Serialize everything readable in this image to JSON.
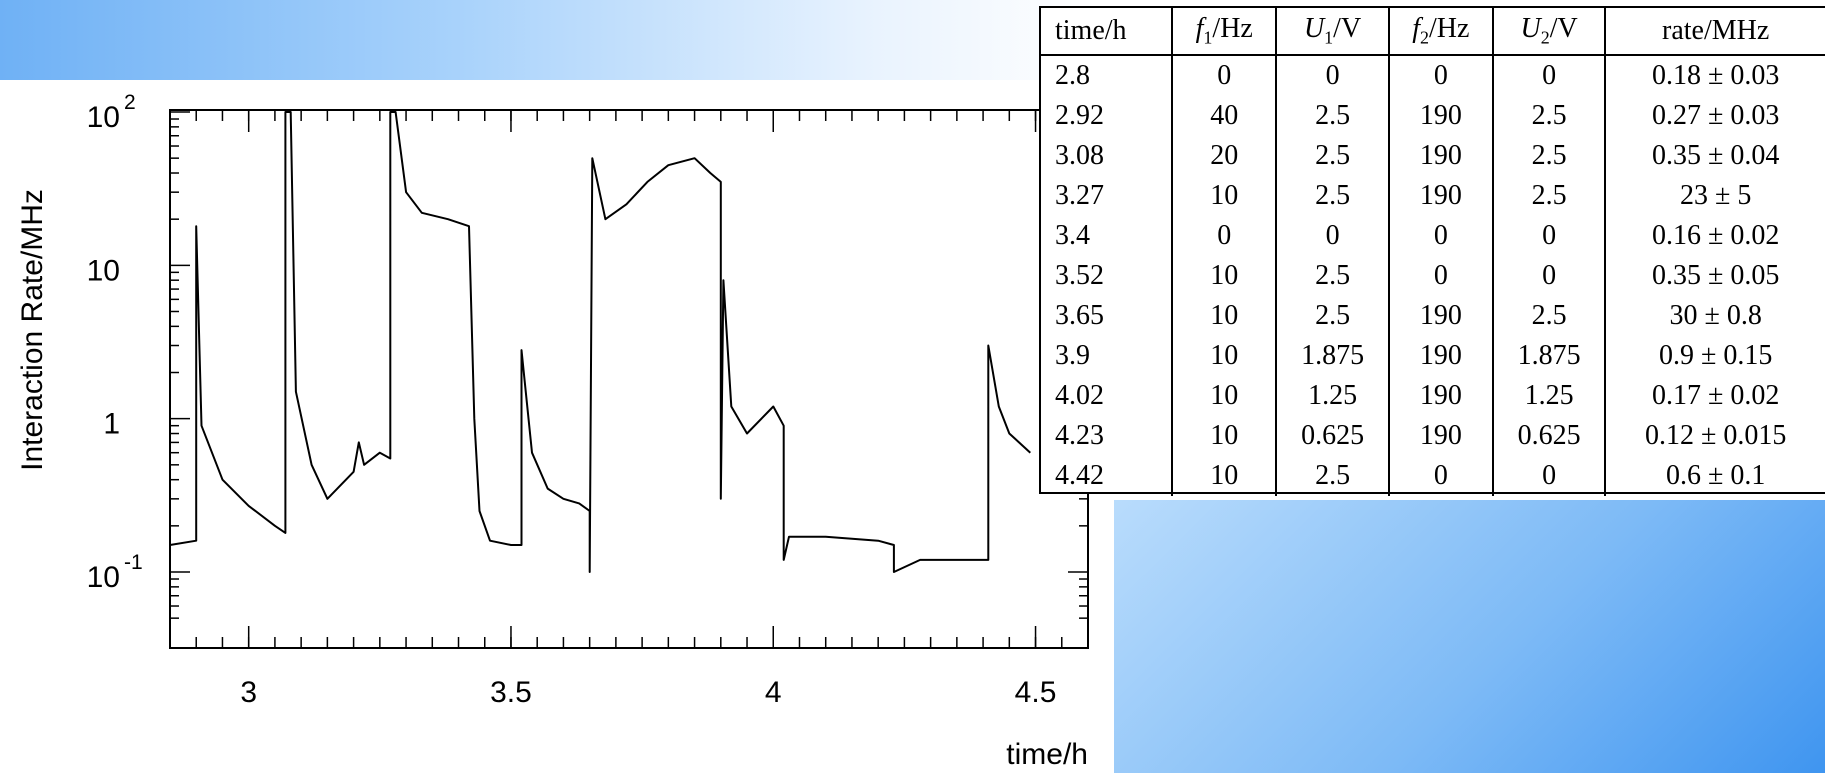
{
  "chart_data": {
    "type": "line",
    "xlabel": "time/h",
    "ylabel": "Interaction Rate/MHz",
    "yscale": "log",
    "xlim": [
      2.85,
      4.6
    ],
    "ylim": [
      0.05,
      100
    ],
    "xticks": [
      {
        "value": 3,
        "label": "3"
      },
      {
        "value": 3.5,
        "label": "3.5"
      },
      {
        "value": 4,
        "label": "4"
      },
      {
        "value": 4.5,
        "label": "4.5"
      }
    ],
    "yticks": [
      {
        "value": 0.1,
        "base": "10",
        "exp": "-1"
      },
      {
        "value": 1,
        "base": "1",
        "exp": ""
      },
      {
        "value": 10,
        "base": "10",
        "exp": ""
      },
      {
        "value": 100,
        "base": "10",
        "exp": "2"
      }
    ],
    "series": [
      {
        "points": [
          [
            2.85,
            0.15
          ],
          [
            2.9,
            0.16
          ],
          [
            2.9,
            18
          ],
          [
            2.91,
            0.9
          ],
          [
            2.95,
            0.4
          ],
          [
            3.0,
            0.27
          ],
          [
            3.05,
            0.2
          ],
          [
            3.07,
            0.18
          ],
          [
            3.07,
            100
          ],
          [
            3.08,
            100
          ],
          [
            3.09,
            1.5
          ],
          [
            3.12,
            0.5
          ],
          [
            3.15,
            0.3
          ],
          [
            3.2,
            0.45
          ],
          [
            3.21,
            0.7
          ],
          [
            3.22,
            0.5
          ],
          [
            3.25,
            0.6
          ],
          [
            3.27,
            0.55
          ],
          [
            3.27,
            100
          ],
          [
            3.28,
            100
          ],
          [
            3.3,
            30
          ],
          [
            3.33,
            22
          ],
          [
            3.38,
            20
          ],
          [
            3.42,
            18
          ],
          [
            3.43,
            1.0
          ],
          [
            3.44,
            0.25
          ],
          [
            3.46,
            0.16
          ],
          [
            3.5,
            0.15
          ],
          [
            3.52,
            0.15
          ],
          [
            3.52,
            2.8
          ],
          [
            3.54,
            0.6
          ],
          [
            3.57,
            0.35
          ],
          [
            3.6,
            0.3
          ],
          [
            3.63,
            0.28
          ],
          [
            3.65,
            0.25
          ],
          [
            3.65,
            0.1
          ],
          [
            3.655,
            50
          ],
          [
            3.68,
            20
          ],
          [
            3.72,
            25
          ],
          [
            3.76,
            35
          ],
          [
            3.8,
            45
          ],
          [
            3.85,
            50
          ],
          [
            3.88,
            40
          ],
          [
            3.9,
            35
          ],
          [
            3.9,
            0.3
          ],
          [
            3.905,
            8
          ],
          [
            3.92,
            1.2
          ],
          [
            3.95,
            0.8
          ],
          [
            4.0,
            1.2
          ],
          [
            4.02,
            0.9
          ],
          [
            4.02,
            0.12
          ],
          [
            4.03,
            0.17
          ],
          [
            4.1,
            0.17
          ],
          [
            4.2,
            0.16
          ],
          [
            4.23,
            0.15
          ],
          [
            4.23,
            0.1
          ],
          [
            4.28,
            0.12
          ],
          [
            4.35,
            0.12
          ],
          [
            4.41,
            0.12
          ],
          [
            4.41,
            3.0
          ],
          [
            4.43,
            1.2
          ],
          [
            4.45,
            0.8
          ],
          [
            4.49,
            0.6
          ]
        ]
      }
    ],
    "table": {
      "columns": [
        {
          "base": "time/h"
        },
        {
          "var": "f",
          "sub": "1",
          "unit": "/Hz"
        },
        {
          "var": "U",
          "sub": "1",
          "unit": "/V"
        },
        {
          "var": "f",
          "sub": "2",
          "unit": "/Hz"
        },
        {
          "var": "U",
          "sub": "2",
          "unit": "/V"
        },
        {
          "base": "rate/MHz"
        }
      ],
      "rows": [
        [
          "2.8",
          "0",
          "0",
          "0",
          "0",
          "0.18 ± 0.03"
        ],
        [
          "2.92",
          "40",
          "2.5",
          "190",
          "2.5",
          "0.27 ± 0.03"
        ],
        [
          "3.08",
          "20",
          "2.5",
          "190",
          "2.5",
          "0.35 ± 0.04"
        ],
        [
          "3.27",
          "10",
          "2.5",
          "190",
          "2.5",
          "23 ± 5"
        ],
        [
          "3.4",
          "0",
          "0",
          "0",
          "0",
          "0.16 ± 0.02"
        ],
        [
          "3.52",
          "10",
          "2.5",
          "0",
          "0",
          "0.35 ± 0.05"
        ],
        [
          "3.65",
          "10",
          "2.5",
          "190",
          "2.5",
          "30 ± 0.8"
        ],
        [
          "3.9",
          "10",
          "1.875",
          "190",
          "1.875",
          "0.9 ± 0.15"
        ],
        [
          "4.02",
          "10",
          "1.25",
          "190",
          "1.25",
          "0.17 ± 0.02"
        ],
        [
          "4.23",
          "10",
          "0.625",
          "190",
          "0.625",
          "0.12 ± 0.015"
        ],
        [
          "4.42",
          "10",
          "2.5",
          "0",
          "0",
          "0.6 ± 0.1"
        ]
      ]
    }
  }
}
